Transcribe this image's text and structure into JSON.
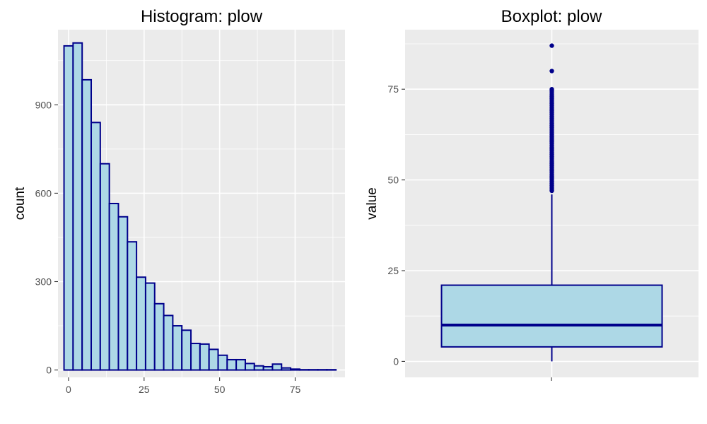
{
  "chart_data": [
    {
      "type": "bar",
      "subtype": "histogram",
      "title": "Histogram: plow",
      "xlabel": "",
      "ylabel": "count",
      "xlim": [
        -3.5,
        91.5
      ],
      "ylim": [
        -25,
        1155
      ],
      "x_ticks": [
        0,
        25,
        50,
        75
      ],
      "y_ticks": [
        0,
        300,
        600,
        900
      ],
      "bin_width": 3,
      "bin_starts": [
        -1.5,
        1.5,
        4.5,
        7.5,
        10.5,
        13.5,
        16.5,
        19.5,
        22.5,
        25.5,
        28.5,
        31.5,
        34.5,
        37.5,
        40.5,
        43.5,
        46.5,
        49.5,
        52.5,
        55.5,
        58.5,
        61.5,
        64.5,
        67.5,
        70.5,
        73.5,
        76.5,
        79.5,
        82.5,
        85.5
      ],
      "values": [
        1100,
        1110,
        985,
        840,
        700,
        565,
        520,
        435,
        315,
        295,
        225,
        185,
        150,
        135,
        90,
        88,
        70,
        50,
        35,
        35,
        22,
        14,
        11,
        20,
        7,
        3,
        1,
        1,
        1,
        1
      ],
      "fill_color": "#add8e6",
      "edge_color": "#00008b",
      "grid": true
    },
    {
      "type": "box",
      "title": "Boxplot: plow",
      "xlabel": "",
      "ylabel": "value",
      "ylim": [
        -4.4,
        91.4
      ],
      "y_ticks": [
        0,
        25,
        50,
        75
      ],
      "q1": 4,
      "median": 10,
      "q3": 21,
      "whisker_low": 0,
      "whisker_high": 46,
      "outliers": [
        47,
        47.5,
        48,
        48.5,
        49,
        49.5,
        50,
        50.5,
        51,
        51.5,
        52,
        52.5,
        53,
        53.5,
        54,
        54.5,
        55,
        55.5,
        56,
        56.5,
        57,
        57.5,
        58,
        58.5,
        59,
        59.5,
        60,
        60.5,
        61,
        61.5,
        62,
        62.5,
        63,
        63.5,
        64,
        64.5,
        65,
        65.5,
        66,
        66.5,
        67,
        67.5,
        68,
        68.5,
        69,
        69.5,
        70,
        70.5,
        71,
        71.5,
        72,
        72.5,
        73,
        73.5,
        74,
        74.5,
        75,
        80,
        87
      ],
      "fill_color": "#add8e6",
      "edge_color": "#00008b",
      "grid": true
    }
  ]
}
